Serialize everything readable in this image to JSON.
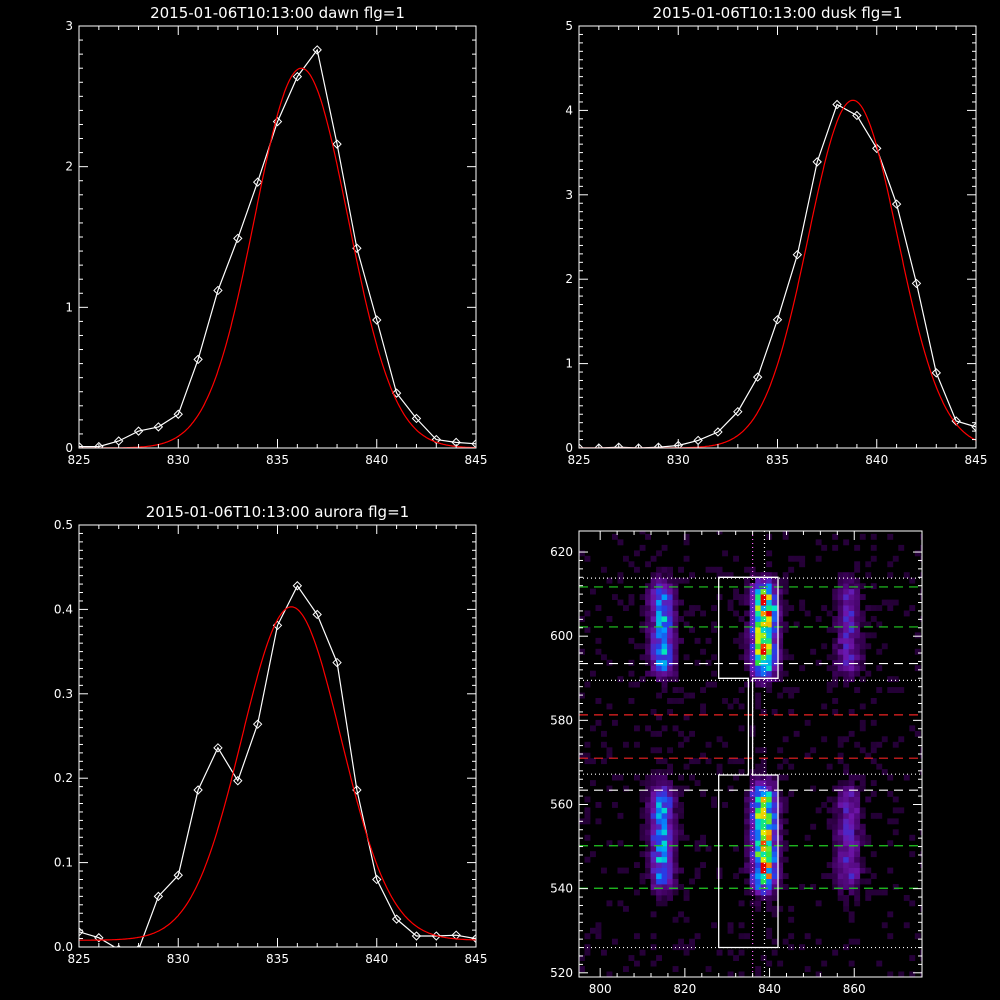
{
  "chart_data": [
    {
      "id": "dawn",
      "type": "line",
      "title": "2015-01-06T10:13:00 dawn flg=1",
      "xlim": [
        825,
        845
      ],
      "ylim": [
        0,
        3
      ],
      "xticks": [
        825,
        830,
        835,
        840,
        845
      ],
      "yticks": [
        0,
        1,
        2,
        3
      ],
      "series": [
        {
          "color": "#ffffff",
          "marker": "diamond",
          "x": [
            825,
            826,
            827,
            828,
            829,
            830,
            831,
            832,
            833,
            834,
            835,
            836,
            837,
            838,
            839,
            840,
            841,
            842,
            843,
            844,
            845
          ],
          "y": [
            0.01,
            0.01,
            0.05,
            0.12,
            0.15,
            0.24,
            0.63,
            1.12,
            1.49,
            1.89,
            2.32,
            2.64,
            2.83,
            2.16,
            1.42,
            0.91,
            0.39,
            0.21,
            0.06,
            0.04,
            0.03
          ]
        },
        {
          "color": "#ff0000",
          "fit": "gaussian",
          "amp": 2.7,
          "mu": 836.2,
          "sigma": 2.35,
          "offset": 0.0
        }
      ]
    },
    {
      "id": "dusk",
      "type": "line",
      "title": "2015-01-06T10:13:00 dusk flg=1",
      "xlim": [
        825,
        845
      ],
      "ylim": [
        0,
        5
      ],
      "xticks": [
        825,
        830,
        835,
        840,
        845
      ],
      "yticks": [
        0,
        1,
        2,
        3,
        4,
        5
      ],
      "series": [
        {
          "color": "#ffffff",
          "marker": "diamond",
          "x": [
            825,
            826,
            827,
            828,
            829,
            830,
            831,
            832,
            833,
            834,
            835,
            836,
            837,
            838,
            839,
            840,
            841,
            842,
            843,
            844,
            845
          ],
          "y": [
            0.0,
            0.0,
            0.01,
            0.0,
            0.01,
            0.03,
            0.09,
            0.19,
            0.43,
            0.84,
            1.52,
            2.29,
            3.39,
            4.07,
            3.94,
            3.55,
            2.89,
            1.95,
            0.89,
            0.32,
            0.25
          ]
        },
        {
          "color": "#ff0000",
          "fit": "gaussian",
          "amp": 4.12,
          "mu": 838.8,
          "sigma": 2.25,
          "offset": 0.0
        }
      ]
    },
    {
      "id": "aurora",
      "type": "line",
      "title": "2015-01-06T10:13:00 aurora flg=1",
      "xlim": [
        825,
        845
      ],
      "ylim": [
        0,
        0.5
      ],
      "xticks": [
        825,
        830,
        835,
        840,
        845
      ],
      "yticks": [
        0.0,
        0.1,
        0.2,
        0.3,
        0.4,
        0.5
      ],
      "series": [
        {
          "color": "#ffffff",
          "marker": "diamond",
          "x": [
            825,
            826,
            827,
            828,
            829,
            830,
            831,
            832,
            833,
            834,
            835,
            836,
            837,
            838,
            839,
            840,
            841,
            842,
            843,
            844,
            845
          ],
          "y": [
            0.018,
            0.011,
            -0.003,
            -0.003,
            0.06,
            0.085,
            0.186,
            0.236,
            0.197,
            0.264,
            0.381,
            0.428,
            0.394,
            0.337,
            0.186,
            0.08,
            0.033,
            0.013,
            0.013,
            0.014,
            0.01
          ]
        },
        {
          "color": "#ff0000",
          "fit": "gaussian",
          "amp": 0.395,
          "mu": 835.7,
          "sigma": 2.5,
          "offset": 0.008
        }
      ]
    },
    {
      "id": "spectrogram",
      "type": "heatmap",
      "xlim": [
        795,
        876
      ],
      "ylim": [
        519,
        625
      ],
      "xticks": [
        800,
        820,
        840,
        860
      ],
      "yticks": [
        520,
        540,
        560,
        580,
        600,
        620
      ],
      "columns_x": [
        814,
        838,
        858
      ],
      "column_weights": [
        0.55,
        1.0,
        0.3
      ],
      "bands": [
        {
          "ymin": 536,
          "ymax": 567
        },
        {
          "ymin": 588,
          "ymax": 614
        }
      ],
      "hotspots": [
        {
          "x": 839,
          "y": 605,
          "v": 1.0
        },
        {
          "x": 838,
          "y": 544,
          "v": 0.6
        }
      ],
      "box_outline": {
        "upper": {
          "x": [
            828,
            842
          ],
          "y": [
            590,
            614
          ]
        },
        "lower": {
          "x": [
            828,
            842
          ],
          "y": [
            526,
            567
          ]
        },
        "connector_x": [
          835,
          836
        ]
      },
      "vlines": [
        {
          "x": 836.0,
          "color": "#ff66ff",
          "style": "dotted"
        },
        {
          "x": 838.8,
          "color": "#ffffff",
          "style": "dotted"
        }
      ],
      "hlines": [
        {
          "y": 613.8,
          "color": "#ffffff",
          "style": "dotted"
        },
        {
          "y": 611.7,
          "color": "#22cc22",
          "style": "dashed"
        },
        {
          "y": 602.2,
          "color": "#22cc22",
          "style": "dashed"
        },
        {
          "y": 593.5,
          "color": "#ffffff",
          "style": "dashed"
        },
        {
          "y": 589.5,
          "color": "#ffffff",
          "style": "dotted"
        },
        {
          "y": 581.3,
          "color": "#ee2222",
          "style": "dashed"
        },
        {
          "y": 571.0,
          "color": "#ee2222",
          "style": "dashed"
        },
        {
          "y": 567.2,
          "color": "#ffffff",
          "style": "dotted"
        },
        {
          "y": 563.4,
          "color": "#ffffff",
          "style": "dashed"
        },
        {
          "y": 550.2,
          "color": "#22cc22",
          "style": "dashed"
        },
        {
          "y": 540.1,
          "color": "#22cc22",
          "style": "dashed"
        },
        {
          "y": 526.0,
          "color": "#ffffff",
          "style": "dotted"
        }
      ]
    }
  ]
}
